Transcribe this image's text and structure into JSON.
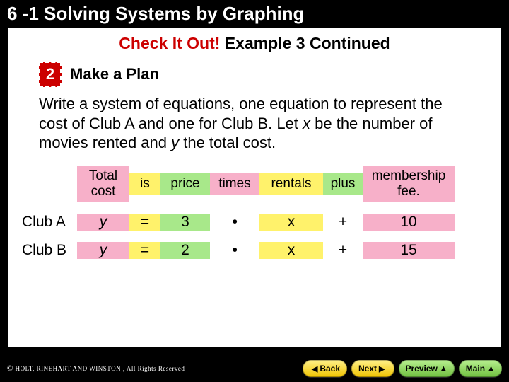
{
  "header": "6 -1  Solving Systems by Graphing",
  "subtitle_red": "Check It Out!",
  "subtitle_black": " Example 3 Continued",
  "step_number": "2",
  "step_label": "Make a Plan",
  "body_p1": "Write a system of equations, one equation to represent the cost of Club A and one for Club B. Let ",
  "body_x": "x",
  "body_p2": " be the number of movies rented and ",
  "body_y": "y",
  "body_p3": " the total cost.",
  "table": {
    "headers": [
      "",
      "Total cost",
      "is",
      "price",
      "times",
      "rentals",
      "plus",
      "membership fee."
    ],
    "header_colors": [
      "",
      "pink",
      "yellow",
      "green",
      "pink",
      "yellow",
      "green",
      "pink"
    ],
    "rows": [
      {
        "label": "Club A",
        "cells": [
          "y",
          "=",
          "3",
          "•",
          "x",
          "+",
          "10"
        ]
      },
      {
        "label": "Club B",
        "cells": [
          "y",
          "=",
          "2",
          "•",
          "x",
          "+",
          "15"
        ]
      }
    ],
    "italic_cols": [
      0,
      3
    ],
    "cell_colors": [
      "pink",
      "yellow",
      "green",
      "",
      "yellow",
      "",
      "pink"
    ]
  },
  "footer": {
    "copyright": " HOLT, RINEHART AND WINSTON , All Rights Reserved",
    "buttons": [
      {
        "label": "Back",
        "class": "nav-yellow",
        "pre_arrow": "◀",
        "post_arrow": ""
      },
      {
        "label": "Next",
        "class": "nav-yellow",
        "pre_arrow": "",
        "post_arrow": "▶"
      },
      {
        "label": "Preview",
        "class": "nav-green",
        "pre_arrow": "",
        "post_arrow": "▲"
      },
      {
        "label": "Main",
        "class": "nav-green",
        "pre_arrow": "",
        "post_arrow": "▲"
      }
    ]
  }
}
